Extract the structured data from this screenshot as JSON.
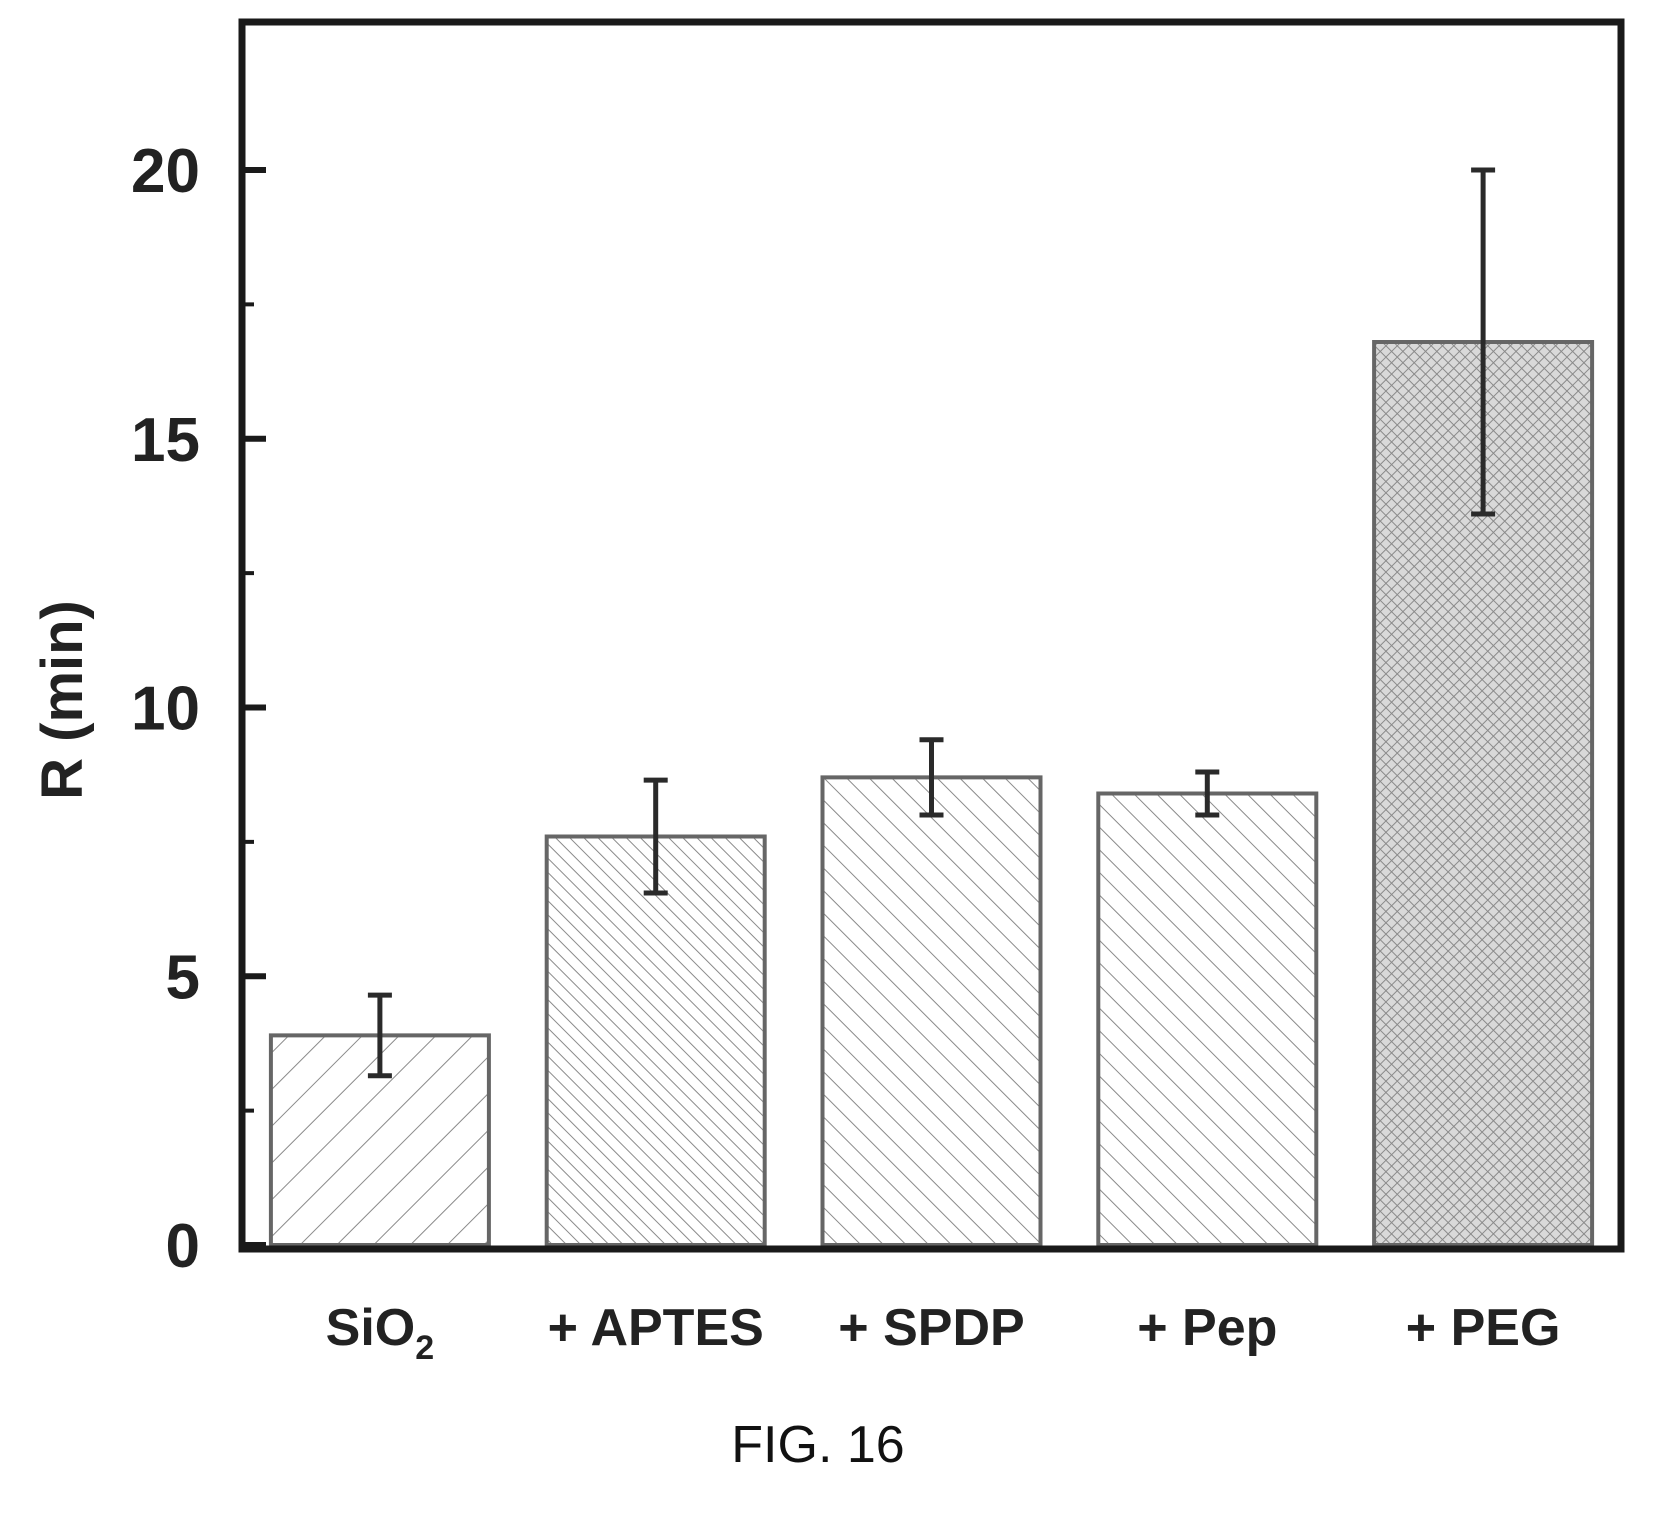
{
  "chart_data": {
    "type": "bar",
    "ylabel": "R (min)",
    "xlabel": "",
    "ylim": [
      0,
      23
    ],
    "yticks": [
      0,
      5,
      10,
      15,
      20
    ],
    "grid": false,
    "categories": [
      {
        "base": "SiO",
        "sub": "2"
      },
      {
        "base": "+ APTES",
        "sub": ""
      },
      {
        "base": "+ SPDP",
        "sub": ""
      },
      {
        "base": "+ Pep",
        "sub": ""
      },
      {
        "base": "+ PEG",
        "sub": ""
      }
    ],
    "values": [
      3.9,
      7.6,
      8.7,
      8.4,
      16.8
    ],
    "errors": [
      0.75,
      1.05,
      0.7,
      0.4,
      3.2
    ],
    "patterns": [
      "hatch-sparse-right",
      "hatch-dense-left",
      "hatch-medium-left",
      "hatch-medium-left",
      "crosshatch"
    ]
  },
  "caption": "FIG. 16",
  "colors": {
    "axis": "#1a1a1a",
    "bar_stroke": "#666666",
    "hatch": "#8a8a8a"
  }
}
